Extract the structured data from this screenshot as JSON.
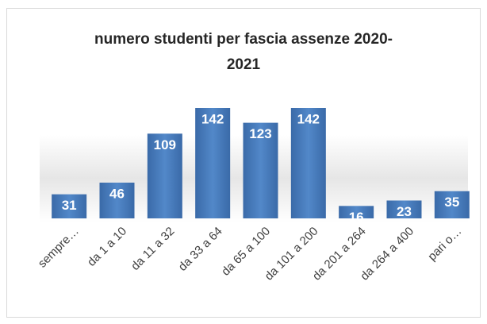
{
  "chart_data": {
    "type": "bar",
    "title": "numero studenti per fascia assenze 2020-2021",
    "categories": [
      "sempre…",
      "da 1 a 10",
      "da 11 a 32",
      "da 33 a 64",
      "da 65 a 100",
      "da 101 a 200",
      "da 201 a 264",
      "da 264 a 400",
      "pari o…"
    ],
    "values": [
      31,
      46,
      109,
      142,
      123,
      142,
      16,
      23,
      35
    ],
    "color": "#4a7ebb"
  }
}
